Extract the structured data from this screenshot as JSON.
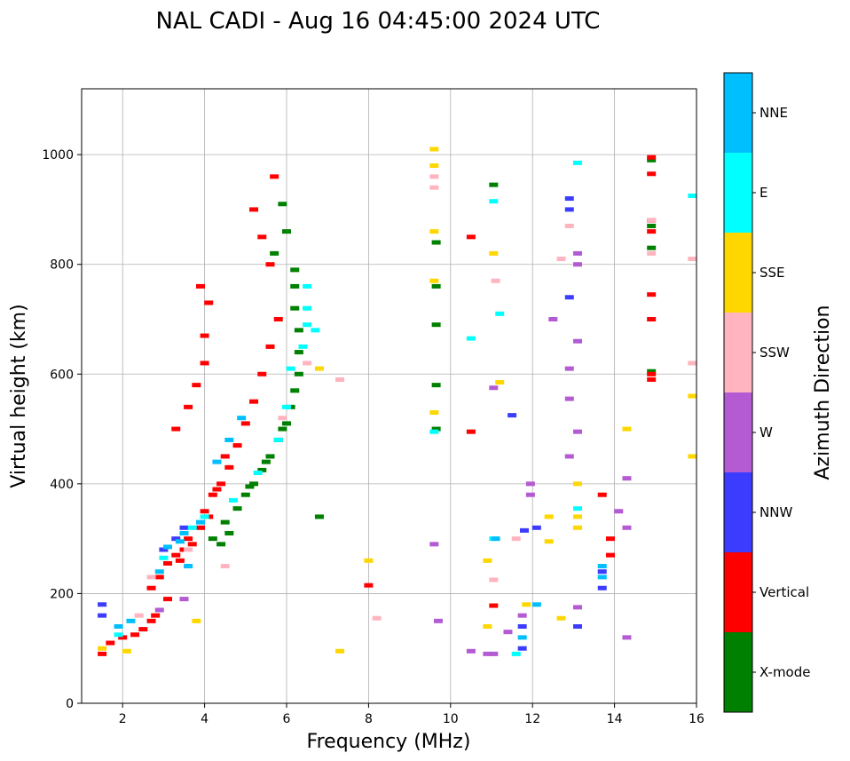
{
  "chart_data": {
    "type": "scatter",
    "title": "NAL CADI - Aug 16 04:45:00 2024 UTC",
    "xlabel": "Frequency (MHz)",
    "ylabel": "Virtual height (km)",
    "xlim": [
      1,
      16
    ],
    "ylim": [
      0,
      1120
    ],
    "xticks": [
      2,
      4,
      6,
      8,
      10,
      12,
      14,
      16
    ],
    "yticks": [
      0,
      200,
      400,
      600,
      800,
      1000
    ],
    "grid": true,
    "colorbar": {
      "label": "Azimuth Direction",
      "categories": [
        {
          "name": "X-mode",
          "color": "#008000"
        },
        {
          "name": "Vertical",
          "color": "#ff0000"
        },
        {
          "name": "NNW",
          "color": "#3c3cff"
        },
        {
          "name": "W",
          "color": "#b45ad2"
        },
        {
          "name": "SSW",
          "color": "#ffb4c0"
        },
        {
          "name": "SSE",
          "color": "#ffd700"
        },
        {
          "name": "E",
          "color": "#00ffff"
        },
        {
          "name": "NNE",
          "color": "#00bfff"
        }
      ]
    },
    "series": [
      {
        "name": "X-mode",
        "points": [
          [
            4.2,
            300
          ],
          [
            4.5,
            330
          ],
          [
            4.8,
            355
          ],
          [
            5.0,
            380
          ],
          [
            5.2,
            400
          ],
          [
            5.4,
            425
          ],
          [
            5.6,
            450
          ],
          [
            5.8,
            480
          ],
          [
            6.0,
            510
          ],
          [
            6.1,
            540
          ],
          [
            6.2,
            570
          ],
          [
            6.3,
            600
          ],
          [
            6.3,
            640
          ],
          [
            6.3,
            680
          ],
          [
            6.2,
            720
          ],
          [
            6.2,
            760
          ],
          [
            6.2,
            790
          ],
          [
            5.9,
            910
          ],
          [
            6.0,
            860
          ],
          [
            5.7,
            820
          ],
          [
            6.8,
            340
          ],
          [
            4.4,
            290
          ],
          [
            4.6,
            310
          ],
          [
            5.1,
            395
          ],
          [
            5.5,
            440
          ],
          [
            5.9,
            500
          ],
          [
            9.65,
            500
          ],
          [
            9.65,
            580
          ],
          [
            9.65,
            690
          ],
          [
            9.65,
            760
          ],
          [
            9.65,
            840
          ],
          [
            11.05,
            945
          ],
          [
            14.9,
            870
          ],
          [
            14.9,
            830
          ],
          [
            14.9,
            990
          ],
          [
            14.9,
            605
          ]
        ]
      },
      {
        "name": "Vertical",
        "points": [
          [
            1.5,
            90
          ],
          [
            1.7,
            110
          ],
          [
            2.0,
            120
          ],
          [
            2.3,
            125
          ],
          [
            2.5,
            135
          ],
          [
            2.7,
            150
          ],
          [
            2.8,
            160
          ],
          [
            2.7,
            210
          ],
          [
            2.9,
            230
          ],
          [
            3.1,
            255
          ],
          [
            3.3,
            270
          ],
          [
            3.5,
            280
          ],
          [
            3.7,
            290
          ],
          [
            3.9,
            320
          ],
          [
            4.0,
            350
          ],
          [
            4.2,
            380
          ],
          [
            4.4,
            400
          ],
          [
            4.6,
            430
          ],
          [
            4.8,
            470
          ],
          [
            5.0,
            510
          ],
          [
            5.2,
            550
          ],
          [
            5.4,
            600
          ],
          [
            5.6,
            650
          ],
          [
            5.8,
            700
          ],
          [
            5.6,
            800
          ],
          [
            5.4,
            850
          ],
          [
            5.2,
            900
          ],
          [
            5.7,
            960
          ],
          [
            3.3,
            500
          ],
          [
            3.6,
            540
          ],
          [
            3.8,
            580
          ],
          [
            4.0,
            620
          ],
          [
            4.0,
            670
          ],
          [
            4.1,
            730
          ],
          [
            3.9,
            760
          ],
          [
            3.1,
            190
          ],
          [
            3.4,
            260
          ],
          [
            3.6,
            300
          ],
          [
            4.1,
            340
          ],
          [
            4.3,
            390
          ],
          [
            4.5,
            450
          ],
          [
            8.0,
            215
          ],
          [
            11.05,
            178
          ],
          [
            10.5,
            495
          ],
          [
            10.5,
            850
          ],
          [
            13.7,
            380
          ],
          [
            13.9,
            270
          ],
          [
            13.9,
            300
          ],
          [
            14.9,
            590
          ],
          [
            14.9,
            600
          ],
          [
            14.9,
            700
          ],
          [
            14.9,
            745
          ],
          [
            14.9,
            860
          ],
          [
            14.9,
            880
          ],
          [
            14.9,
            965
          ],
          [
            14.9,
            995
          ]
        ]
      },
      {
        "name": "NNW",
        "points": [
          [
            1.5,
            180
          ],
          [
            1.5,
            160
          ],
          [
            3.0,
            280
          ],
          [
            3.3,
            300
          ],
          [
            3.5,
            320
          ],
          [
            13.7,
            210
          ],
          [
            13.7,
            240
          ],
          [
            11.75,
            100
          ],
          [
            11.75,
            140
          ],
          [
            12.9,
            900
          ],
          [
            12.9,
            920
          ],
          [
            12.9,
            740
          ],
          [
            12.1,
            320
          ],
          [
            11.8,
            315
          ],
          [
            13.1,
            140
          ],
          [
            11.5,
            525
          ]
        ]
      },
      {
        "name": "W",
        "points": [
          [
            2.9,
            170
          ],
          [
            3.5,
            190
          ],
          [
            12.9,
            450
          ],
          [
            12.9,
            610
          ],
          [
            12.9,
            555
          ],
          [
            13.1,
            495
          ],
          [
            13.1,
            660
          ],
          [
            13.1,
            800
          ],
          [
            13.1,
            820
          ],
          [
            11.05,
            575
          ],
          [
            11.05,
            90
          ],
          [
            10.5,
            95
          ],
          [
            10.9,
            90
          ],
          [
            11.4,
            130
          ],
          [
            11.75,
            160
          ],
          [
            11.95,
            400
          ],
          [
            11.95,
            380
          ],
          [
            12.5,
            700
          ],
          [
            14.1,
            350
          ],
          [
            14.3,
            410
          ],
          [
            14.3,
            320
          ],
          [
            14.3,
            120
          ],
          [
            9.6,
            290
          ],
          [
            9.7,
            150
          ],
          [
            13.1,
            175
          ]
        ]
      },
      {
        "name": "SSW",
        "points": [
          [
            2.4,
            160
          ],
          [
            2.7,
            230
          ],
          [
            3.6,
            280
          ],
          [
            4.5,
            250
          ],
          [
            5.9,
            520
          ],
          [
            6.5,
            620
          ],
          [
            7.3,
            590
          ],
          [
            9.6,
            940
          ],
          [
            9.6,
            960
          ],
          [
            11.05,
            225
          ],
          [
            11.1,
            770
          ],
          [
            11.6,
            300
          ],
          [
            12.7,
            810
          ],
          [
            12.9,
            870
          ],
          [
            14.9,
            820
          ],
          [
            14.9,
            880
          ],
          [
            15.9,
            810
          ],
          [
            15.9,
            620
          ],
          [
            8.2,
            155
          ]
        ]
      },
      {
        "name": "SSE",
        "points": [
          [
            1.5,
            100
          ],
          [
            2.1,
            95
          ],
          [
            3.8,
            150
          ],
          [
            7.3,
            95
          ],
          [
            8.0,
            260
          ],
          [
            9.6,
            1010
          ],
          [
            9.6,
            980
          ],
          [
            9.6,
            860
          ],
          [
            9.6,
            770
          ],
          [
            9.6,
            530
          ],
          [
            11.05,
            820
          ],
          [
            10.9,
            260
          ],
          [
            10.9,
            140
          ],
          [
            11.2,
            585
          ],
          [
            11.85,
            180
          ],
          [
            12.4,
            340
          ],
          [
            12.4,
            295
          ],
          [
            12.7,
            155
          ],
          [
            13.1,
            400
          ],
          [
            13.1,
            340
          ],
          [
            13.1,
            320
          ],
          [
            14.3,
            500
          ],
          [
            15.9,
            560
          ],
          [
            15.9,
            450
          ],
          [
            6.5,
            720
          ],
          [
            6.8,
            610
          ]
        ]
      },
      {
        "name": "E",
        "points": [
          [
            1.9,
            125
          ],
          [
            3.0,
            265
          ],
          [
            3.7,
            320
          ],
          [
            4.0,
            340
          ],
          [
            4.7,
            370
          ],
          [
            5.3,
            420
          ],
          [
            5.8,
            480
          ],
          [
            6.0,
            540
          ],
          [
            6.1,
            610
          ],
          [
            6.4,
            650
          ],
          [
            6.5,
            690
          ],
          [
            6.5,
            760
          ],
          [
            6.5,
            720
          ],
          [
            6.7,
            680
          ],
          [
            10.5,
            665
          ],
          [
            11.05,
            915
          ],
          [
            11.2,
            710
          ],
          [
            11.05,
            300
          ],
          [
            11.6,
            90
          ],
          [
            13.1,
            985
          ],
          [
            13.1,
            355
          ],
          [
            15.9,
            925
          ],
          [
            9.6,
            495
          ]
        ]
      },
      {
        "name": "NNE",
        "points": [
          [
            1.9,
            140
          ],
          [
            2.2,
            150
          ],
          [
            2.9,
            240
          ],
          [
            3.1,
            285
          ],
          [
            3.4,
            295
          ],
          [
            3.5,
            310
          ],
          [
            3.6,
            250
          ],
          [
            3.9,
            330
          ],
          [
            4.3,
            440
          ],
          [
            4.6,
            480
          ],
          [
            4.9,
            520
          ],
          [
            11.1,
            300
          ],
          [
            13.7,
            250
          ],
          [
            13.7,
            230
          ],
          [
            11.75,
            120
          ],
          [
            12.1,
            180
          ]
        ]
      }
    ]
  }
}
